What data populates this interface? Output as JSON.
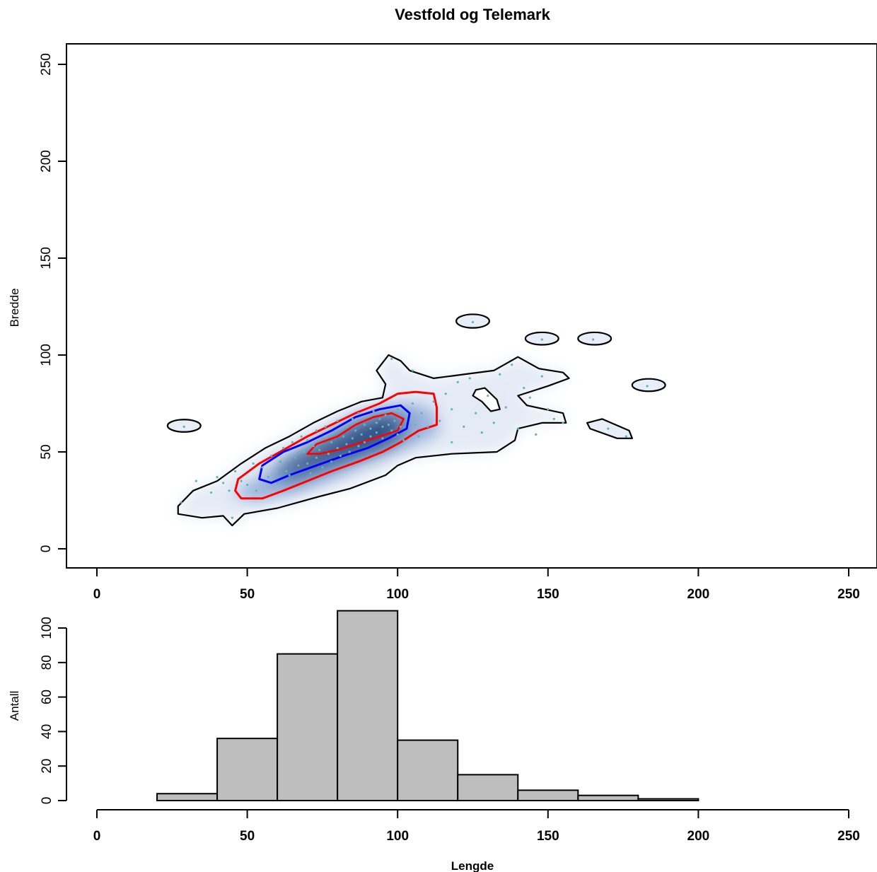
{
  "chart_data": [
    {
      "type": "scatter",
      "title": "Vestfold og Telemark",
      "xlabel": "",
      "ylabel": "Bredde",
      "xlim": [
        -10,
        255
      ],
      "ylim": [
        -10,
        260
      ],
      "xticks": [
        0,
        50,
        100,
        150,
        200,
        250
      ],
      "yticks": [
        0,
        50,
        100,
        150,
        200,
        250
      ],
      "grid": false,
      "density_fill_color": "#08306b",
      "contours": [
        {
          "level": "outer",
          "color": "#000000"
        },
        {
          "level": "middle",
          "color": "#ff0000"
        },
        {
          "level": "inner",
          "color": "#0000ff"
        },
        {
          "level": "core",
          "color": "#ff0000"
        }
      ],
      "point_color": "#5fb8a8",
      "points": [
        [
          29,
          63
        ],
        [
          45,
          16
        ],
        [
          125,
          117
        ],
        [
          148,
          108
        ],
        [
          165,
          108
        ],
        [
          183,
          84
        ],
        [
          170,
          62
        ],
        [
          176,
          58
        ],
        [
          155,
          65
        ],
        [
          152,
          67
        ],
        [
          28,
          24
        ],
        [
          33,
          35
        ],
        [
          38,
          29
        ],
        [
          40,
          37
        ],
        [
          42,
          34
        ],
        [
          44,
          30
        ],
        [
          46,
          40
        ],
        [
          48,
          35
        ],
        [
          50,
          33
        ],
        [
          52,
          44
        ],
        [
          53,
          30
        ],
        [
          55,
          42
        ],
        [
          57,
          37
        ],
        [
          58,
          48
        ],
        [
          60,
          34
        ],
        [
          61,
          45
        ],
        [
          62,
          52
        ],
        [
          63,
          40
        ],
        [
          64,
          38
        ],
        [
          65,
          55
        ],
        [
          66,
          47
        ],
        [
          67,
          43
        ],
        [
          68,
          58
        ],
        [
          69,
          50
        ],
        [
          70,
          44
        ],
        [
          70,
          56
        ],
        [
          71,
          39
        ],
        [
          72,
          53
        ],
        [
          73,
          61
        ],
        [
          73,
          47
        ],
        [
          74,
          51
        ],
        [
          75,
          57
        ],
        [
          75,
          42
        ],
        [
          76,
          63
        ],
        [
          77,
          49
        ],
        [
          78,
          55
        ],
        [
          78,
          45
        ],
        [
          79,
          60
        ],
        [
          80,
          52
        ],
        [
          80,
          66
        ],
        [
          81,
          48
        ],
        [
          82,
          58
        ],
        [
          83,
          54
        ],
        [
          83,
          63
        ],
        [
          84,
          50
        ],
        [
          85,
          67
        ],
        [
          85,
          57
        ],
        [
          86,
          61
        ],
        [
          87,
          53
        ],
        [
          87,
          70
        ],
        [
          88,
          59
        ],
        [
          89,
          64
        ],
        [
          89,
          55
        ],
        [
          90,
          68
        ],
        [
          91,
          62
        ],
        [
          91,
          58
        ],
        [
          92,
          71
        ],
        [
          93,
          65
        ],
        [
          93,
          60
        ],
        [
          94,
          67
        ],
        [
          95,
          63
        ],
        [
          95,
          57
        ],
        [
          96,
          69
        ],
        [
          97,
          64
        ],
        [
          98,
          61
        ],
        [
          99,
          66
        ],
        [
          100,
          59
        ],
        [
          100,
          72
        ],
        [
          101,
          63
        ],
        [
          102,
          56
        ],
        [
          103,
          68
        ],
        [
          104,
          60
        ],
        [
          105,
          75
        ],
        [
          106,
          64
        ],
        [
          107,
          58
        ],
        [
          108,
          70
        ],
        [
          110,
          63
        ],
        [
          112,
          76
        ],
        [
          114,
          66
        ],
        [
          116,
          80
        ],
        [
          118,
          72
        ],
        [
          120,
          86
        ],
        [
          122,
          63
        ],
        [
          124,
          88
        ],
        [
          126,
          70
        ],
        [
          128,
          60
        ],
        [
          130,
          79
        ],
        [
          132,
          65
        ],
        [
          134,
          90
        ],
        [
          136,
          73
        ],
        [
          138,
          95
        ],
        [
          140,
          62
        ],
        [
          142,
          83
        ],
        [
          144,
          78
        ],
        [
          146,
          59
        ],
        [
          148,
          89
        ],
        [
          150,
          72
        ],
        [
          98,
          98
        ],
        [
          105,
          92
        ],
        [
          118,
          55
        ]
      ]
    },
    {
      "type": "bar",
      "title": "",
      "xlabel": "Lengde",
      "ylabel": "Antall",
      "xlim": [
        -10,
        255
      ],
      "ylim": [
        0,
        115
      ],
      "xticks": [
        0,
        50,
        100,
        150,
        200,
        250
      ],
      "yticks": [
        0,
        20,
        40,
        60,
        80,
        100
      ],
      "bar_color": "#bebebe",
      "bins": [
        {
          "from": 20,
          "to": 40,
          "count": 4
        },
        {
          "from": 40,
          "to": 60,
          "count": 36
        },
        {
          "from": 60,
          "to": 80,
          "count": 85
        },
        {
          "from": 80,
          "to": 100,
          "count": 110
        },
        {
          "from": 100,
          "to": 120,
          "count": 35
        },
        {
          "from": 120,
          "to": 140,
          "count": 15
        },
        {
          "from": 140,
          "to": 160,
          "count": 6
        },
        {
          "from": 160,
          "to": 180,
          "count": 3
        },
        {
          "from": 180,
          "to": 200,
          "count": 1
        }
      ]
    }
  ]
}
